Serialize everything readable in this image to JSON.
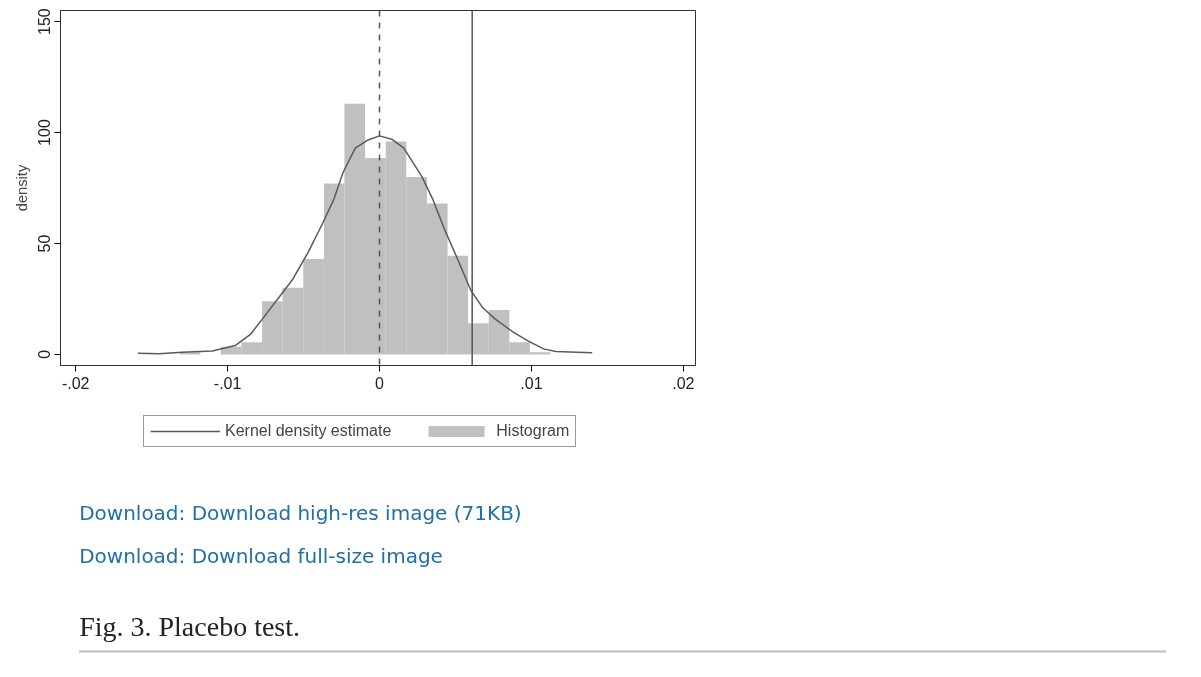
{
  "chart_data": {
    "type": "histogram",
    "ylabel": "density",
    "xlim": [
      -0.021,
      0.0208
    ],
    "ylim": [
      -5,
      155
    ],
    "xticks": [
      {
        "value": -0.02,
        "label": "-.02"
      },
      {
        "value": -0.01,
        "label": "-.01"
      },
      0,
      {
        "value": 0.01,
        "label": ".01"
      },
      {
        "value": 0.02,
        "label": ".02"
      }
    ],
    "yticks": [
      0,
      50,
      100,
      150
    ],
    "series": [
      {
        "name": "Kernel density estimate",
        "type": "line",
        "color": "#5a5a5a",
        "x": [
          -0.0159,
          -0.0145,
          -0.013,
          -0.011,
          -0.0095,
          -0.0085,
          -0.0077,
          -0.0067,
          -0.0057,
          -0.0047,
          -0.00375,
          -0.003,
          -0.0024,
          -0.0016,
          -0.0008,
          0,
          0.0008,
          0.0016,
          0.0028,
          0.0035,
          0.0043,
          0.0052,
          0.006,
          0.0068,
          0.0076,
          0.0088,
          0.0098,
          0.0108,
          0.0116,
          0.013,
          0.014
        ],
        "values": [
          0.5,
          0.3,
          1,
          1.5,
          4,
          9,
          16,
          25,
          34,
          46,
          59,
          70,
          82,
          93,
          96.5,
          98.5,
          97,
          93,
          80,
          70,
          56,
          42,
          29,
          21,
          16,
          10,
          6,
          2.5,
          1.3,
          1,
          0.7
        ]
      },
      {
        "name": "Histogram",
        "color": "#c0c0c0",
        "bins": [
          -0.01316,
          -0.0118,
          -0.01045,
          -0.00909,
          -0.00773,
          -0.00638,
          -0.00502,
          -0.00366,
          -0.00231,
          -0.00095,
          0.00041,
          0.00176,
          0.00312,
          0.00448,
          0.00583,
          0.00719,
          0.00855,
          0.0099,
          0.01126
        ],
        "values": [
          1,
          0,
          3.5,
          5.5,
          24,
          30,
          43,
          77,
          113,
          88.5,
          96,
          80,
          68,
          44.5,
          14,
          20,
          5.5,
          1
        ]
      }
    ],
    "ref_lines": [
      {
        "axis": "x",
        "value": 0,
        "line_style": "dashed",
        "color": "#555555"
      },
      {
        "axis": "x",
        "value": 0.0061,
        "line_style": "solid",
        "color": "#555555"
      }
    ],
    "grid": false,
    "legend": "bottom",
    "annotations": [
      "Download: Download high-res image (71KB)",
      "Download: Download full-size image",
      "Fig. 3. Placebo test."
    ]
  }
}
